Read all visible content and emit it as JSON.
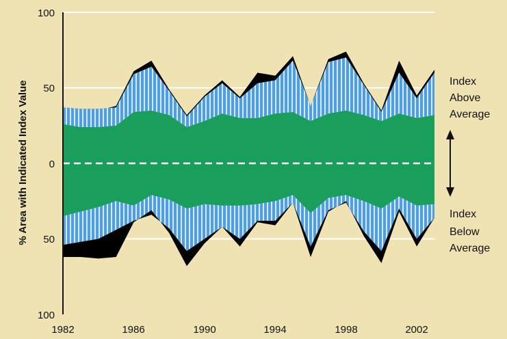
{
  "chart_data": {
    "type": "area",
    "ylabel": "% Area with Indicated Index Value",
    "x_ticks": [
      "1982",
      "1986",
      "1990",
      "1994",
      "1998",
      "2002"
    ],
    "y_ticks_upper": [
      "100",
      "50",
      "0"
    ],
    "y_ticks_lower": [
      "50",
      "100"
    ],
    "ylim": [
      -100,
      100
    ],
    "xlim": [
      1982,
      2003
    ],
    "zero_line": "dashed",
    "grid": true,
    "annotations": {
      "above": [
        "Index",
        "Above",
        "Average"
      ],
      "below": [
        "Index",
        "Below",
        "Average"
      ]
    },
    "colors": {
      "background": "#efe3b3",
      "grid": "#ffffff",
      "green": "#1a9e5b",
      "blue": "#4f9fe0",
      "stripe": "#d4e9fb",
      "black": "#000000"
    },
    "x": [
      1982,
      1983,
      1984,
      1985,
      1986,
      1987,
      1988,
      1989,
      1990,
      1991,
      1992,
      1993,
      1994,
      1995,
      1996,
      1997,
      1998,
      1999,
      2000,
      2001,
      2002,
      2003
    ],
    "series": [
      {
        "values": [
          26,
          24,
          24,
          25,
          34,
          35,
          32,
          24,
          28,
          33,
          30,
          30,
          33,
          34,
          28,
          33,
          35,
          32,
          28,
          33,
          30,
          32
        ]
      },
      {
        "values": [
          37,
          36,
          36,
          37,
          59,
          64,
          48,
          31,
          44,
          53,
          43,
          53,
          55,
          68,
          38,
          67,
          70,
          52,
          34,
          60,
          43,
          60
        ]
      },
      {
        "values": [
          37,
          35,
          35,
          38,
          61,
          68,
          49,
          32,
          45,
          55,
          44,
          60,
          58,
          71,
          38,
          69,
          74,
          53,
          35,
          68,
          45,
          62
        ]
      },
      {
        "values": [
          -35,
          -32,
          -29,
          -25,
          -28,
          -21,
          -24,
          -30,
          -27,
          -28,
          -28,
          -27,
          -25,
          -21,
          -33,
          -23,
          -21,
          -25,
          -30,
          -22,
          -28,
          -27
        ]
      },
      {
        "values": [
          -54,
          -52,
          -50,
          -44,
          -38,
          -34,
          -43,
          -58,
          -50,
          -42,
          -50,
          -38,
          -38,
          -26,
          -55,
          -31,
          -26,
          -45,
          -58,
          -30,
          -50,
          -36
        ]
      },
      {
        "values": [
          -62,
          -62,
          -63,
          -62,
          -39,
          -31,
          -46,
          -68,
          -53,
          -42,
          -55,
          -39,
          -41,
          -26,
          -62,
          -32,
          -25,
          -48,
          -66,
          -32,
          -55,
          -36
        ]
      }
    ]
  }
}
